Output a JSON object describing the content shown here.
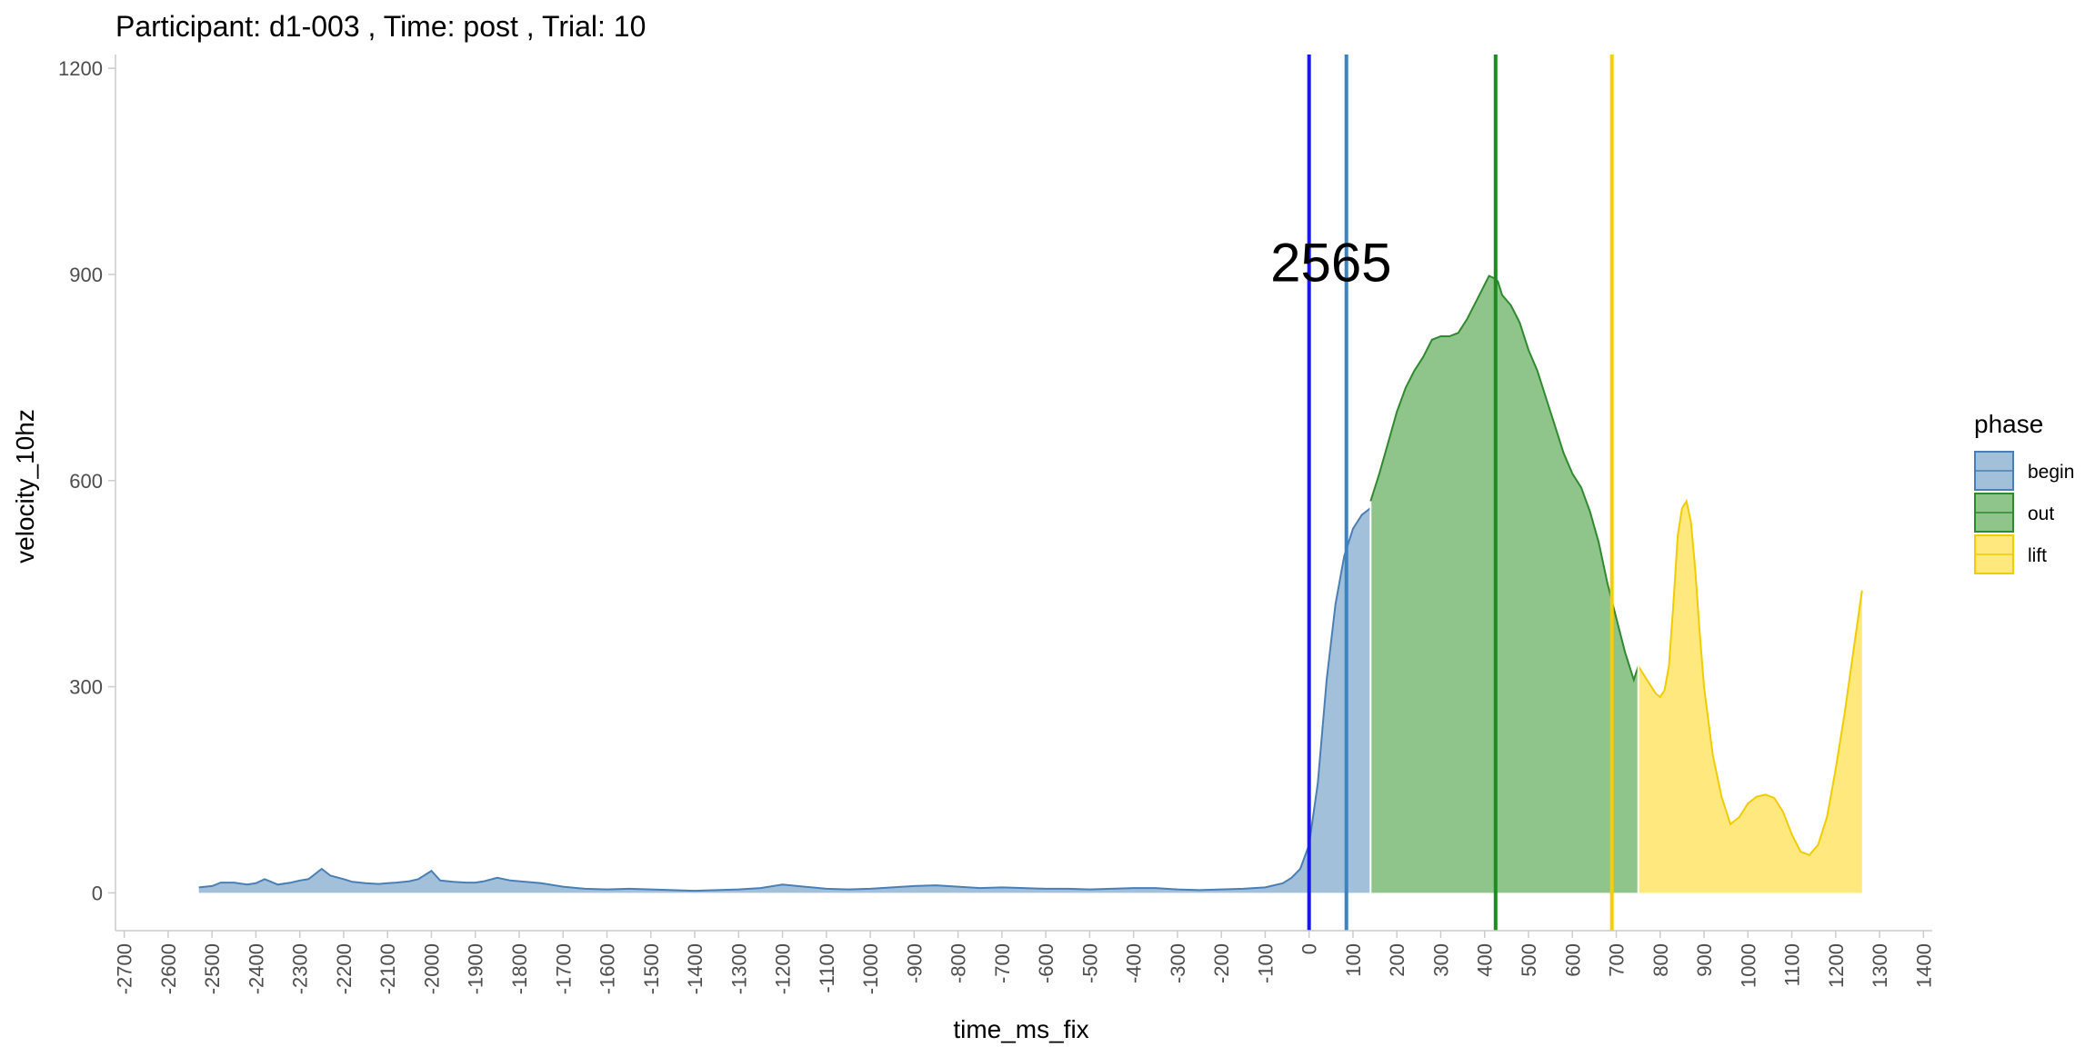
{
  "chart_data": {
    "type": "area",
    "title": "Participant:  d1-003 , Time: post , Trial:  10",
    "xlabel": "time_ms_fix",
    "ylabel": "velocity_10hz",
    "xlim": [
      -2720,
      1420
    ],
    "ylim": [
      -55,
      1220
    ],
    "x_ticks": [
      -2700,
      -2600,
      -2500,
      -2400,
      -2300,
      -2200,
      -2100,
      -2000,
      -1900,
      -1800,
      -1700,
      -1600,
      -1500,
      -1400,
      -1300,
      -1200,
      -1100,
      -1000,
      -900,
      -800,
      -700,
      -600,
      -500,
      -400,
      -300,
      -200,
      -100,
      0,
      100,
      200,
      300,
      400,
      500,
      600,
      700,
      800,
      900,
      1000,
      1100,
      1200,
      1300,
      1400
    ],
    "x_tick_labels": [
      "-2700",
      "-2600",
      "-2500",
      "-2400",
      "-2300",
      "-2200",
      "-2100",
      "-2000",
      "-1900",
      "-1800",
      "-1700",
      "-1600",
      "-1500",
      "-1400",
      "-1300",
      "-1200",
      "-1100",
      "-1000",
      "-900",
      "-800",
      "-700",
      "-600",
      "-500",
      "-400",
      "-300",
      "-200",
      "-100",
      "0",
      "100",
      "200",
      "300",
      "400",
      "500",
      "600",
      "700",
      "800",
      "900",
      "1000",
      "1100",
      "1200",
      "1300",
      "1400"
    ],
    "y_ticks": [
      0,
      300,
      600,
      900,
      1200
    ],
    "y_tick_labels": [
      "0",
      "300",
      "600",
      "900",
      "1200"
    ],
    "grid": false,
    "legend": {
      "title": "phase",
      "position": "right",
      "entries": [
        {
          "name": "begin",
          "fill": "#a3c0da",
          "stroke": "#4a7fb5"
        },
        {
          "name": "out",
          "fill": "#8fc48a",
          "stroke": "#2f8a2f"
        },
        {
          "name": "lift",
          "fill": "#ffe97f",
          "stroke": "#f0cc00"
        }
      ]
    },
    "series": [
      {
        "name": "begin",
        "fill": "#a3c0da",
        "stroke": "#4a7fb5",
        "x": [
          -2530,
          -2500,
          -2480,
          -2450,
          -2420,
          -2400,
          -2380,
          -2350,
          -2320,
          -2300,
          -2280,
          -2250,
          -2230,
          -2200,
          -2180,
          -2150,
          -2120,
          -2100,
          -2080,
          -2050,
          -2030,
          -2000,
          -1980,
          -1950,
          -1920,
          -1900,
          -1880,
          -1850,
          -1820,
          -1800,
          -1750,
          -1700,
          -1650,
          -1600,
          -1550,
          -1500,
          -1450,
          -1400,
          -1350,
          -1300,
          -1250,
          -1200,
          -1150,
          -1100,
          -1050,
          -1000,
          -950,
          -900,
          -850,
          -800,
          -750,
          -700,
          -650,
          -600,
          -550,
          -500,
          -450,
          -400,
          -350,
          -300,
          -250,
          -200,
          -150,
          -100,
          -60,
          -40,
          -20,
          0,
          20,
          40,
          60,
          80,
          100,
          120,
          140
        ],
        "values": [
          8,
          10,
          15,
          15,
          12,
          14,
          20,
          12,
          15,
          18,
          20,
          35,
          25,
          20,
          16,
          14,
          13,
          14,
          15,
          17,
          20,
          32,
          18,
          16,
          15,
          15,
          17,
          22,
          18,
          17,
          14,
          9,
          6,
          5,
          6,
          5,
          4,
          3,
          4,
          5,
          7,
          12,
          9,
          6,
          5,
          6,
          8,
          10,
          11,
          9,
          7,
          8,
          7,
          6,
          6,
          5,
          6,
          7,
          7,
          5,
          4,
          5,
          6,
          8,
          14,
          22,
          35,
          70,
          160,
          310,
          420,
          490,
          530,
          550,
          560
        ]
      },
      {
        "name": "out",
        "fill": "#8fc48a",
        "stroke": "#2f8a2f",
        "x": [
          140,
          160,
          180,
          200,
          220,
          240,
          260,
          280,
          300,
          320,
          340,
          360,
          380,
          400,
          410,
          420,
          430,
          440,
          460,
          480,
          500,
          520,
          540,
          560,
          580,
          600,
          620,
          640,
          660,
          680,
          700,
          720,
          740,
          750
        ],
        "values": [
          570,
          610,
          655,
          700,
          735,
          760,
          780,
          805,
          810,
          810,
          815,
          835,
          860,
          885,
          898,
          895,
          890,
          870,
          855,
          830,
          790,
          760,
          720,
          680,
          640,
          610,
          590,
          555,
          510,
          450,
          400,
          350,
          310,
          330
        ]
      },
      {
        "name": "lift",
        "fill": "#ffe97f",
        "stroke": "#f0cc00",
        "x": [
          750,
          770,
          790,
          800,
          810,
          820,
          830,
          840,
          850,
          860,
          870,
          880,
          890,
          900,
          920,
          940,
          960,
          980,
          1000,
          1020,
          1040,
          1060,
          1080,
          1100,
          1120,
          1140,
          1160,
          1180,
          1200,
          1220,
          1240,
          1260
        ],
        "values": [
          330,
          310,
          290,
          285,
          295,
          330,
          420,
          520,
          560,
          570,
          540,
          470,
          380,
          300,
          200,
          140,
          100,
          110,
          130,
          140,
          143,
          138,
          118,
          85,
          60,
          55,
          70,
          110,
          180,
          260,
          350,
          440
        ]
      }
    ],
    "vlines": [
      {
        "x": 0,
        "color": "#1a1ae6"
      },
      {
        "x": 85,
        "color": "#3a82c2"
      },
      {
        "x": 425,
        "color": "#1f8a1f"
      },
      {
        "x": 690,
        "color": "#f5d000"
      }
    ],
    "annotations": [
      {
        "text": "2565",
        "x": 50,
        "y": 890
      }
    ]
  }
}
